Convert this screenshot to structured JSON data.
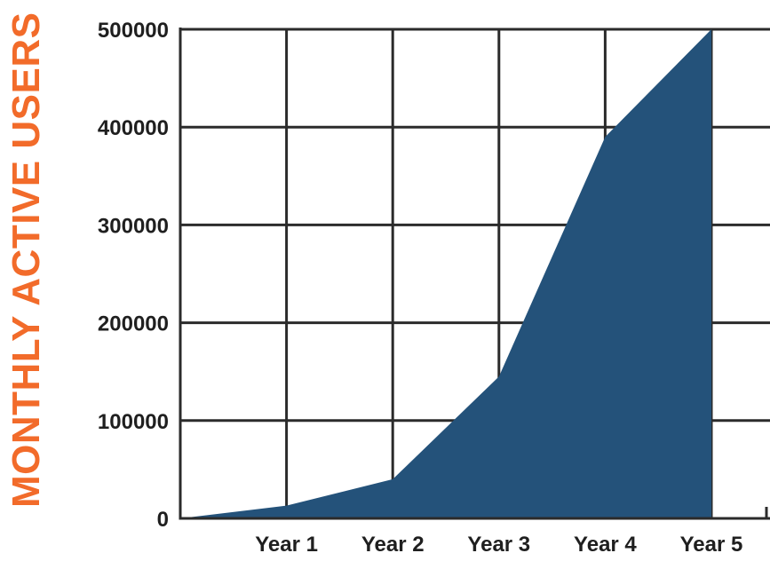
{
  "chart_data": {
    "type": "area",
    "title": "",
    "xlabel": "",
    "ylabel": "MONTHLY ACTIVE USERS",
    "x": [
      "",
      "Year 1",
      "Year 2",
      "Year 3",
      "Year 4",
      "Year 5"
    ],
    "categories": [
      "Year 1",
      "Year 2",
      "Year 3",
      "Year 4",
      "Year 5"
    ],
    "values": [
      0,
      13000,
      40000,
      145000,
      390000,
      500000
    ],
    "ylim": [
      0,
      500000
    ],
    "yticks": [
      "0",
      "100000",
      "200000",
      "300000",
      "400000",
      "500000"
    ],
    "grid": true,
    "legend": "none"
  },
  "colors": {
    "area": "#24527a",
    "grid": "#2b2b2b",
    "ylabel": "#f26b2a",
    "tick_text": "#1f1f1f"
  }
}
